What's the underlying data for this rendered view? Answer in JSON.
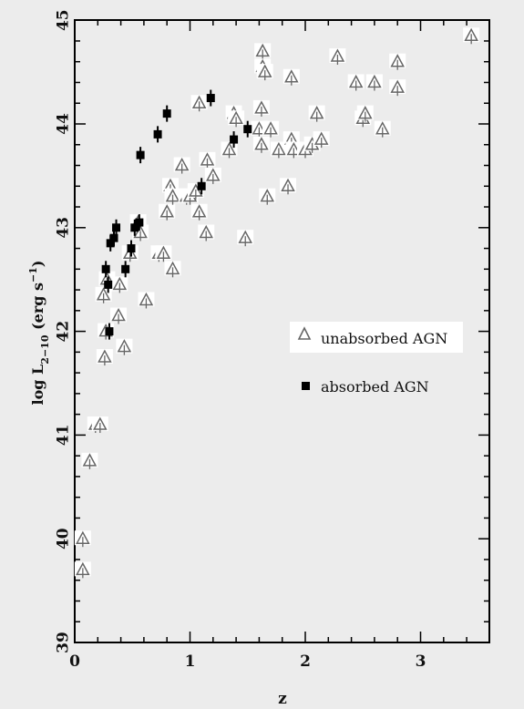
{
  "chart_data": {
    "type": "scatter",
    "xlabel": "z",
    "ylabel_main": "log L",
    "ylabel_sub": "2−10",
    "ylabel_unit_pre": " (erg s",
    "ylabel_unit_sup": "−1",
    "ylabel_unit_post": ")",
    "xlim": [
      0,
      3.6
    ],
    "ylim": [
      39,
      45
    ],
    "xticks": [
      0,
      1,
      2,
      3
    ],
    "yticks": [
      39,
      40,
      41,
      42,
      43,
      44,
      45
    ],
    "grid": false,
    "legend_position": "right-middle",
    "legend": {
      "unabsorbed": "unabsorbed AGN",
      "absorbed": "absorbed AGN"
    },
    "series": [
      {
        "name": "unabsorbed AGN",
        "marker": "open-triangle",
        "color": "#666666",
        "points": [
          [
            0.07,
            40.0
          ],
          [
            0.07,
            39.7
          ],
          [
            0.13,
            40.75
          ],
          [
            0.18,
            41.1
          ],
          [
            0.22,
            41.1
          ],
          [
            0.26,
            41.75
          ],
          [
            0.27,
            42.0
          ],
          [
            0.25,
            42.35
          ],
          [
            0.28,
            42.5
          ],
          [
            0.39,
            42.45
          ],
          [
            0.38,
            42.15
          ],
          [
            0.43,
            41.85
          ],
          [
            0.48,
            42.75
          ],
          [
            0.55,
            43.05
          ],
          [
            0.57,
            42.95
          ],
          [
            0.62,
            42.3
          ],
          [
            0.73,
            42.75
          ],
          [
            0.77,
            42.75
          ],
          [
            0.8,
            43.15
          ],
          [
            0.83,
            43.4
          ],
          [
            0.85,
            43.3
          ],
          [
            0.85,
            42.6
          ],
          [
            0.93,
            43.6
          ],
          [
            0.97,
            43.3
          ],
          [
            1.0,
            43.3
          ],
          [
            1.05,
            43.35
          ],
          [
            1.08,
            43.15
          ],
          [
            1.08,
            44.2
          ],
          [
            1.14,
            42.95
          ],
          [
            1.15,
            43.65
          ],
          [
            1.2,
            43.5
          ],
          [
            1.34,
            43.75
          ],
          [
            1.38,
            44.1
          ],
          [
            1.4,
            44.05
          ],
          [
            1.48,
            42.9
          ],
          [
            1.6,
            43.95
          ],
          [
            1.62,
            44.15
          ],
          [
            1.63,
            44.7
          ],
          [
            1.63,
            44.55
          ],
          [
            1.65,
            44.5
          ],
          [
            1.62,
            43.8
          ],
          [
            1.67,
            43.3
          ],
          [
            1.7,
            43.95
          ],
          [
            1.77,
            43.75
          ],
          [
            1.85,
            43.4
          ],
          [
            1.88,
            43.85
          ],
          [
            1.88,
            44.45
          ],
          [
            1.9,
            43.75
          ],
          [
            2.0,
            43.75
          ],
          [
            2.06,
            43.8
          ],
          [
            2.1,
            44.1
          ],
          [
            2.14,
            43.85
          ],
          [
            2.28,
            44.65
          ],
          [
            2.44,
            44.4
          ],
          [
            2.5,
            44.05
          ],
          [
            2.52,
            44.1
          ],
          [
            2.6,
            44.4
          ],
          [
            2.67,
            43.95
          ],
          [
            2.8,
            44.6
          ],
          [
            2.8,
            44.35
          ],
          [
            3.44,
            44.85
          ]
        ]
      },
      {
        "name": "absorbed AGN",
        "marker": "filled-square",
        "color": "#000000",
        "points": [
          [
            0.27,
            42.6
          ],
          [
            0.29,
            42.45
          ],
          [
            0.3,
            42.0
          ],
          [
            0.31,
            42.85
          ],
          [
            0.34,
            42.9
          ],
          [
            0.36,
            43.0
          ],
          [
            0.44,
            42.6
          ],
          [
            0.49,
            42.8
          ],
          [
            0.52,
            43.0
          ],
          [
            0.56,
            43.05
          ],
          [
            0.57,
            43.7
          ],
          [
            0.72,
            43.9
          ],
          [
            0.8,
            44.1
          ],
          [
            1.1,
            43.4
          ],
          [
            1.18,
            44.25
          ],
          [
            1.38,
            43.85
          ],
          [
            1.5,
            43.95
          ]
        ]
      }
    ]
  }
}
